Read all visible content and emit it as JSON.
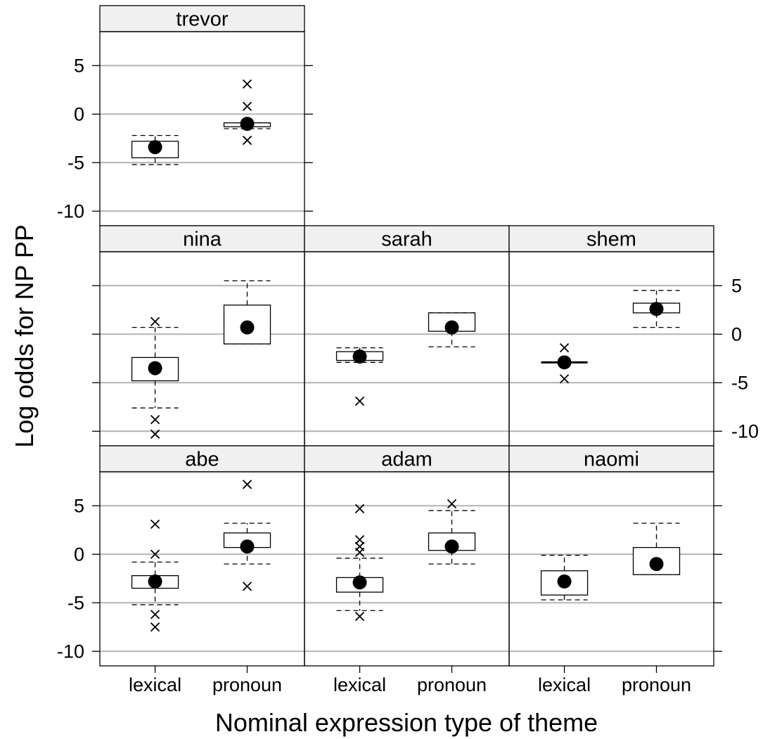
{
  "chart_data": {
    "type": "box",
    "xlabel": "Nominal expression type of theme",
    "ylabel": "Log odds for NP PP",
    "categories": [
      "lexical",
      "pronoun"
    ],
    "yticks": [
      5,
      0,
      -5,
      -10
    ],
    "ytick_labels": [
      "5",
      "0",
      "-5",
      "-10"
    ],
    "ylim": [
      -11.5,
      8.5
    ],
    "grid": true,
    "panels": [
      {
        "name": "trevor",
        "boxes": [
          {
            "category": "lexical",
            "median": -3.4,
            "q1": -4.5,
            "q3": -2.8,
            "whisker_low": -5.2,
            "whisker_high": -2.2,
            "outliers": []
          },
          {
            "category": "pronoun",
            "median": -1.0,
            "q1": -1.3,
            "q3": -0.9,
            "whisker_low": -1.5,
            "whisker_high": -0.9,
            "outliers": [
              3.1,
              0.8,
              -2.7
            ]
          }
        ]
      },
      {
        "name": "nina",
        "boxes": [
          {
            "category": "lexical",
            "median": -3.5,
            "q1": -4.8,
            "q3": -2.4,
            "whisker_low": -7.6,
            "whisker_high": 0.7,
            "outliers": [
              1.3,
              -8.8,
              -10.3
            ]
          },
          {
            "category": "pronoun",
            "median": 0.7,
            "q1": -1.0,
            "q3": 3.0,
            "whisker_low": -1.0,
            "whisker_high": 5.5,
            "outliers": []
          }
        ]
      },
      {
        "name": "sarah",
        "boxes": [
          {
            "category": "lexical",
            "median": -2.3,
            "q1": -2.7,
            "q3": -1.8,
            "whisker_low": -2.9,
            "whisker_high": -1.4,
            "outliers": [
              -6.9
            ]
          },
          {
            "category": "pronoun",
            "median": 0.7,
            "q1": 0.3,
            "q3": 2.2,
            "whisker_low": -1.3,
            "whisker_high": 2.2,
            "outliers": []
          }
        ]
      },
      {
        "name": "shem",
        "boxes": [
          {
            "category": "lexical",
            "median": -2.9,
            "q1": -2.9,
            "q3": -2.9,
            "whisker_low": -2.9,
            "whisker_high": -2.9,
            "outliers": [
              -1.4,
              -4.6
            ]
          },
          {
            "category": "pronoun",
            "median": 2.6,
            "q1": 2.2,
            "q3": 3.2,
            "whisker_low": 0.7,
            "whisker_high": 4.5,
            "outliers": []
          }
        ]
      },
      {
        "name": "abe",
        "boxes": [
          {
            "category": "lexical",
            "median": -2.8,
            "q1": -3.5,
            "q3": -2.2,
            "whisker_low": -5.2,
            "whisker_high": -0.8,
            "outliers": [
              3.1,
              0.0,
              -6.2,
              -7.5
            ]
          },
          {
            "category": "pronoun",
            "median": 0.8,
            "q1": 0.7,
            "q3": 2.2,
            "whisker_low": -1.0,
            "whisker_high": 3.2,
            "outliers": [
              7.2,
              -3.3
            ]
          }
        ]
      },
      {
        "name": "adam",
        "boxes": [
          {
            "category": "lexical",
            "median": -2.9,
            "q1": -3.9,
            "q3": -2.4,
            "whisker_low": -5.8,
            "whisker_high": -0.4,
            "outliers": [
              4.7,
              1.5,
              0.8,
              0.2,
              -6.4
            ]
          },
          {
            "category": "pronoun",
            "median": 0.8,
            "q1": 0.4,
            "q3": 2.2,
            "whisker_low": -1.0,
            "whisker_high": 4.5,
            "outliers": [
              5.2
            ]
          }
        ]
      },
      {
        "name": "naomi",
        "boxes": [
          {
            "category": "lexical",
            "median": -2.8,
            "q1": -4.2,
            "q3": -1.7,
            "whisker_low": -4.7,
            "whisker_high": -0.1,
            "outliers": []
          },
          {
            "category": "pronoun",
            "median": -1.0,
            "q1": -2.1,
            "q3": 0.7,
            "whisker_low": -2.1,
            "whisker_high": 3.2,
            "outliers": []
          }
        ]
      }
    ]
  }
}
